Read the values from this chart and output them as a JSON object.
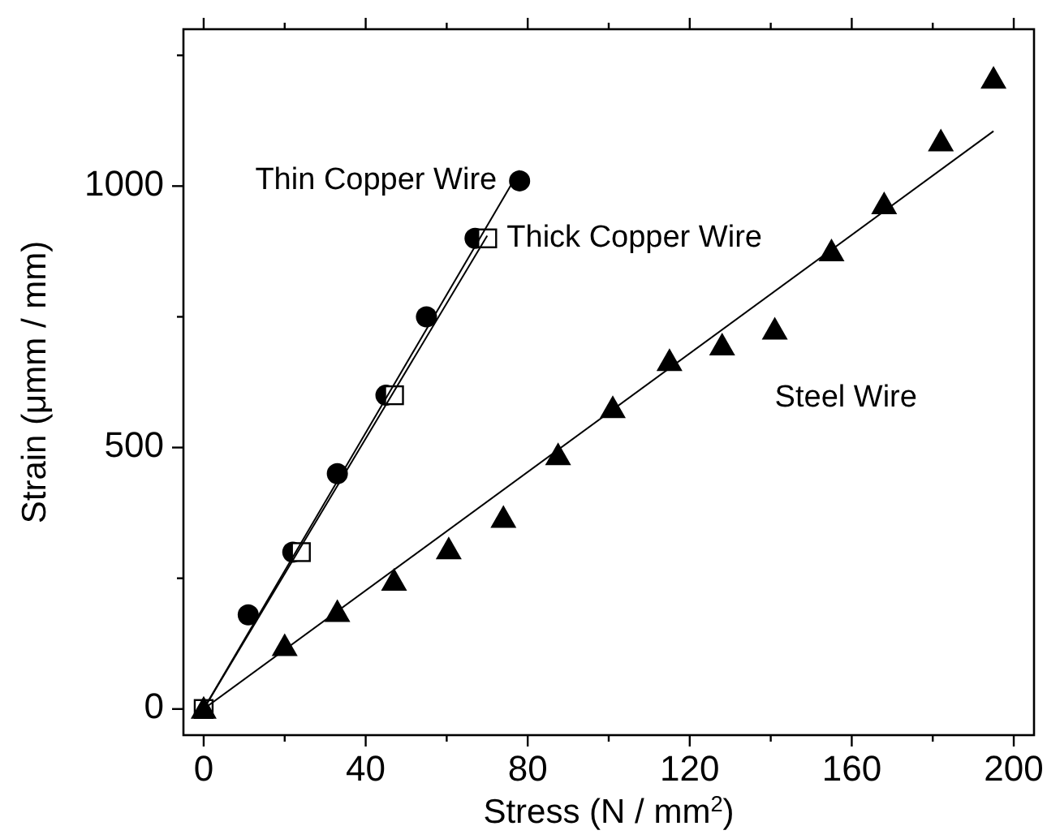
{
  "chart_data": {
    "type": "scatter",
    "xlabel": "Stress (N / mm$^{2}$)",
    "ylabel": "Strain (μmm / mm)",
    "xlim": [
      -5,
      205
    ],
    "ylim": [
      -50,
      1300
    ],
    "xticks": [
      0,
      {
        "value": 20,
        "label": null
      },
      40,
      {
        "value": 60,
        "label": null
      },
      80,
      {
        "value": 100,
        "label": null
      },
      120,
      {
        "value": 140,
        "label": null
      },
      160,
      {
        "value": 180,
        "label": null
      },
      200
    ],
    "yticks": [
      0,
      {
        "value": 250,
        "label": null
      },
      500,
      {
        "value": 750,
        "label": null
      },
      1000,
      {
        "value": 1250,
        "label": null
      }
    ],
    "grid": false,
    "series": [
      {
        "name": "Thin Copper Wire",
        "marker": "circle",
        "color": "#000000",
        "x": [
          11,
          22,
          33,
          45,
          55,
          67,
          78
        ],
        "values": [
          180,
          300,
          450,
          600,
          750,
          900,
          1010
        ]
      },
      {
        "name": "Thick Copper Wire",
        "marker": "square",
        "color": "#000000",
        "x": [
          0,
          24,
          47,
          70
        ],
        "values": [
          0,
          300,
          600,
          900
        ]
      },
      {
        "name": "Steel Wire",
        "marker": "triangle",
        "color": "#000000",
        "x": [
          0,
          20,
          33,
          47,
          60.5,
          74,
          87.5,
          101,
          115,
          128,
          141,
          155,
          168,
          182,
          195
        ],
        "values": [
          0,
          120,
          185,
          245,
          305,
          365,
          485,
          575,
          665,
          695,
          725,
          875,
          965,
          1085,
          1205
        ]
      },
      {
        "type": "line",
        "marker": "none",
        "line_style": "solid",
        "color": "#000000",
        "x": [
          0,
          78
        ],
        "values": [
          0,
          1030
        ]
      },
      {
        "type": "line",
        "marker": "none",
        "line_style": "solid",
        "color": "#000000",
        "x": [
          0,
          70
        ],
        "values": [
          0,
          905
        ]
      },
      {
        "type": "line",
        "marker": "none",
        "line_style": "solid",
        "color": "#000000",
        "x": [
          0,
          195
        ],
        "values": [
          0,
          1105
        ]
      }
    ]
  }
}
